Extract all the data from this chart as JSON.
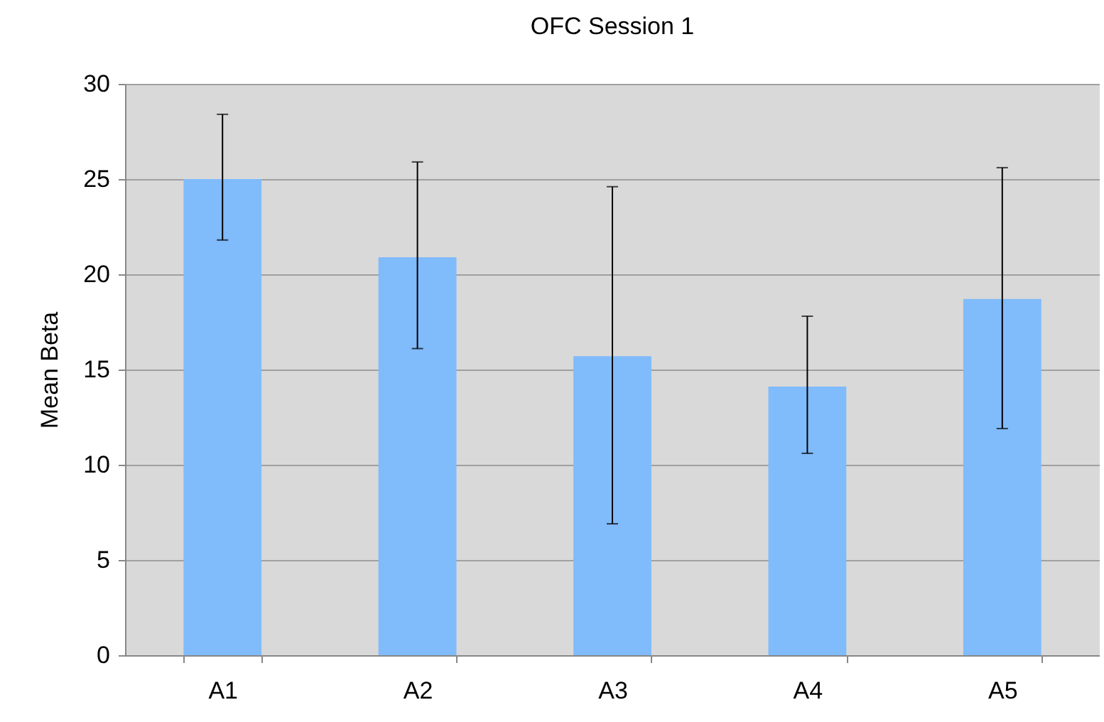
{
  "chart_data": {
    "type": "bar",
    "title": "OFC Session 1",
    "ylabel": "Mean Beta",
    "categories": [
      "A1",
      "A2",
      "A3",
      "A4",
      "A5"
    ],
    "values": [
      25.0,
      20.9,
      15.7,
      14.1,
      18.7
    ],
    "errors": [
      [
        21.8,
        28.4
      ],
      [
        16.1,
        25.9
      ],
      [
        6.9,
        24.6
      ],
      [
        10.6,
        17.8
      ],
      [
        11.9,
        25.6
      ]
    ],
    "color": "#80bbfb",
    "ylim": [
      0,
      30
    ],
    "yticks": [
      0,
      5,
      10,
      15,
      20,
      25,
      30
    ],
    "grid": "y"
  }
}
